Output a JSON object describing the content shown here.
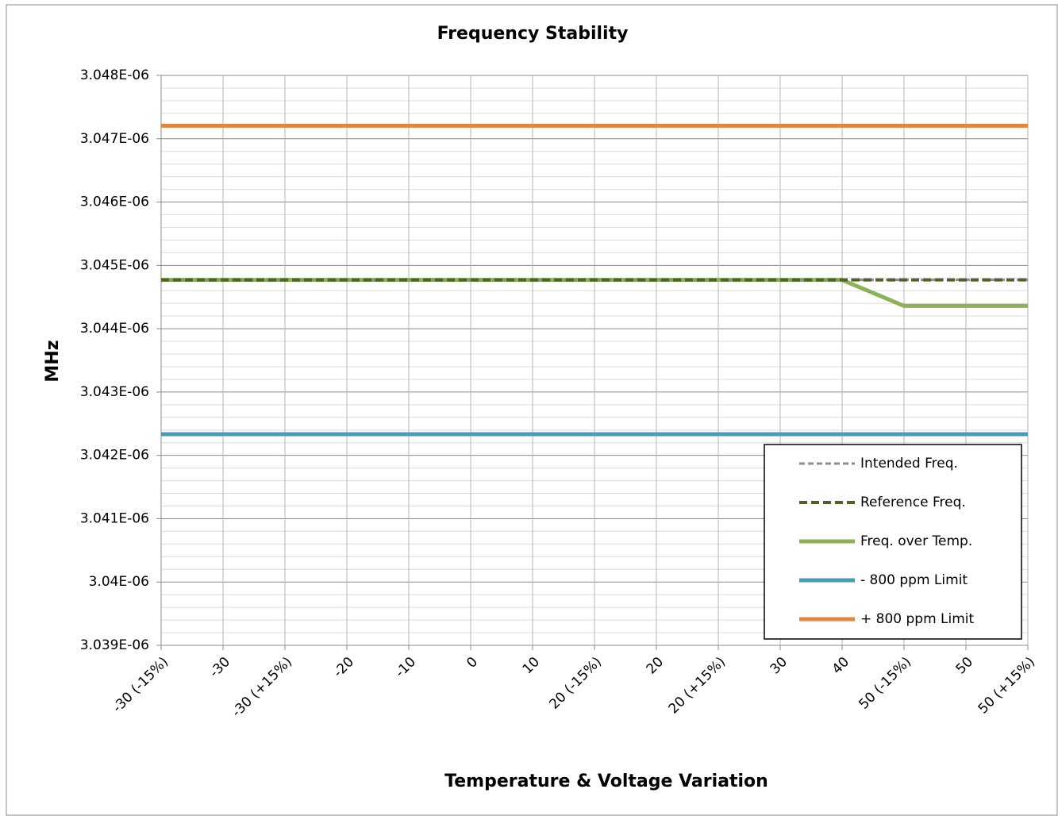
{
  "chart_data": {
    "type": "line",
    "title": "Frequency Stability",
    "xlabel": "Temperature & Voltage Variation",
    "ylabel": "MHz",
    "categories": [
      "-30 (-15%)",
      "-30",
      "-30 (+15%)",
      "-20",
      "-10",
      "0",
      "10",
      "20 (-15%)",
      "20",
      "20 (+15%)",
      "30",
      "40",
      "50 (-15%)",
      "50",
      "50 (+15%)"
    ],
    "series": [
      {
        "name": "Intended Freq.",
        "color": "#8c8c8c",
        "dash": true,
        "width": 3,
        "values": [
          3.04477e-06,
          3.04477e-06,
          3.04477e-06,
          3.04477e-06,
          3.04477e-06,
          3.04477e-06,
          3.04477e-06,
          3.04477e-06,
          3.04477e-06,
          3.04477e-06,
          3.04477e-06,
          3.04477e-06,
          3.04477e-06,
          3.04477e-06,
          3.04477e-06
        ]
      },
      {
        "name": "Reference Freq.",
        "color": "#4f6228",
        "dash": true,
        "width": 4,
        "values": [
          3.04477e-06,
          3.04477e-06,
          3.04477e-06,
          3.04477e-06,
          3.04477e-06,
          3.04477e-06,
          3.04477e-06,
          3.04477e-06,
          3.04477e-06,
          3.04477e-06,
          3.04477e-06,
          3.04477e-06,
          3.04477e-06,
          3.04477e-06,
          3.04477e-06
        ]
      },
      {
        "name": "Freq. over Temp.",
        "color": "#8db255",
        "dash": false,
        "width": 5,
        "values": [
          3.04477e-06,
          3.04477e-06,
          3.04477e-06,
          3.04477e-06,
          3.04477e-06,
          3.04477e-06,
          3.04477e-06,
          3.04477e-06,
          3.04477e-06,
          3.04477e-06,
          3.04477e-06,
          3.04477e-06,
          3.04436e-06,
          3.04436e-06,
          3.04436e-06
        ]
      },
      {
        "name": "- 800 ppm Limit",
        "color": "#4a9bb5",
        "dash": false,
        "width": 5,
        "values": [
          3.042334e-06,
          3.042334e-06,
          3.042334e-06,
          3.042334e-06,
          3.042334e-06,
          3.042334e-06,
          3.042334e-06,
          3.042334e-06,
          3.042334e-06,
          3.042334e-06,
          3.042334e-06,
          3.042334e-06,
          3.042334e-06,
          3.042334e-06,
          3.042334e-06
        ]
      },
      {
        "name": "+ 800 ppm Limit",
        "color": "#e0873d",
        "dash": false,
        "width": 5,
        "values": [
          3.047206e-06,
          3.047206e-06,
          3.047206e-06,
          3.047206e-06,
          3.047206e-06,
          3.047206e-06,
          3.047206e-06,
          3.047206e-06,
          3.047206e-06,
          3.047206e-06,
          3.047206e-06,
          3.047206e-06,
          3.047206e-06,
          3.047206e-06,
          3.047206e-06
        ]
      }
    ],
    "ylim": [
      3.039e-06,
      3.048e-06
    ],
    "yticks": [
      {
        "value": 3.039e-06,
        "label": "3.039E-06"
      },
      {
        "value": 3.04e-06,
        "label": "3.04E-06"
      },
      {
        "value": 3.041e-06,
        "label": "3.041E-06"
      },
      {
        "value": 3.042e-06,
        "label": "3.042E-06"
      },
      {
        "value": 3.043e-06,
        "label": "3.043E-06"
      },
      {
        "value": 3.044e-06,
        "label": "3.044E-06"
      },
      {
        "value": 3.045e-06,
        "label": "3.045E-06"
      },
      {
        "value": 3.046e-06,
        "label": "3.046E-06"
      },
      {
        "value": 3.047e-06,
        "label": "3.047E-06"
      },
      {
        "value": 3.048e-06,
        "label": "3.048E-06"
      }
    ],
    "grid": true,
    "minor_grid": true,
    "legend": "lower right"
  }
}
